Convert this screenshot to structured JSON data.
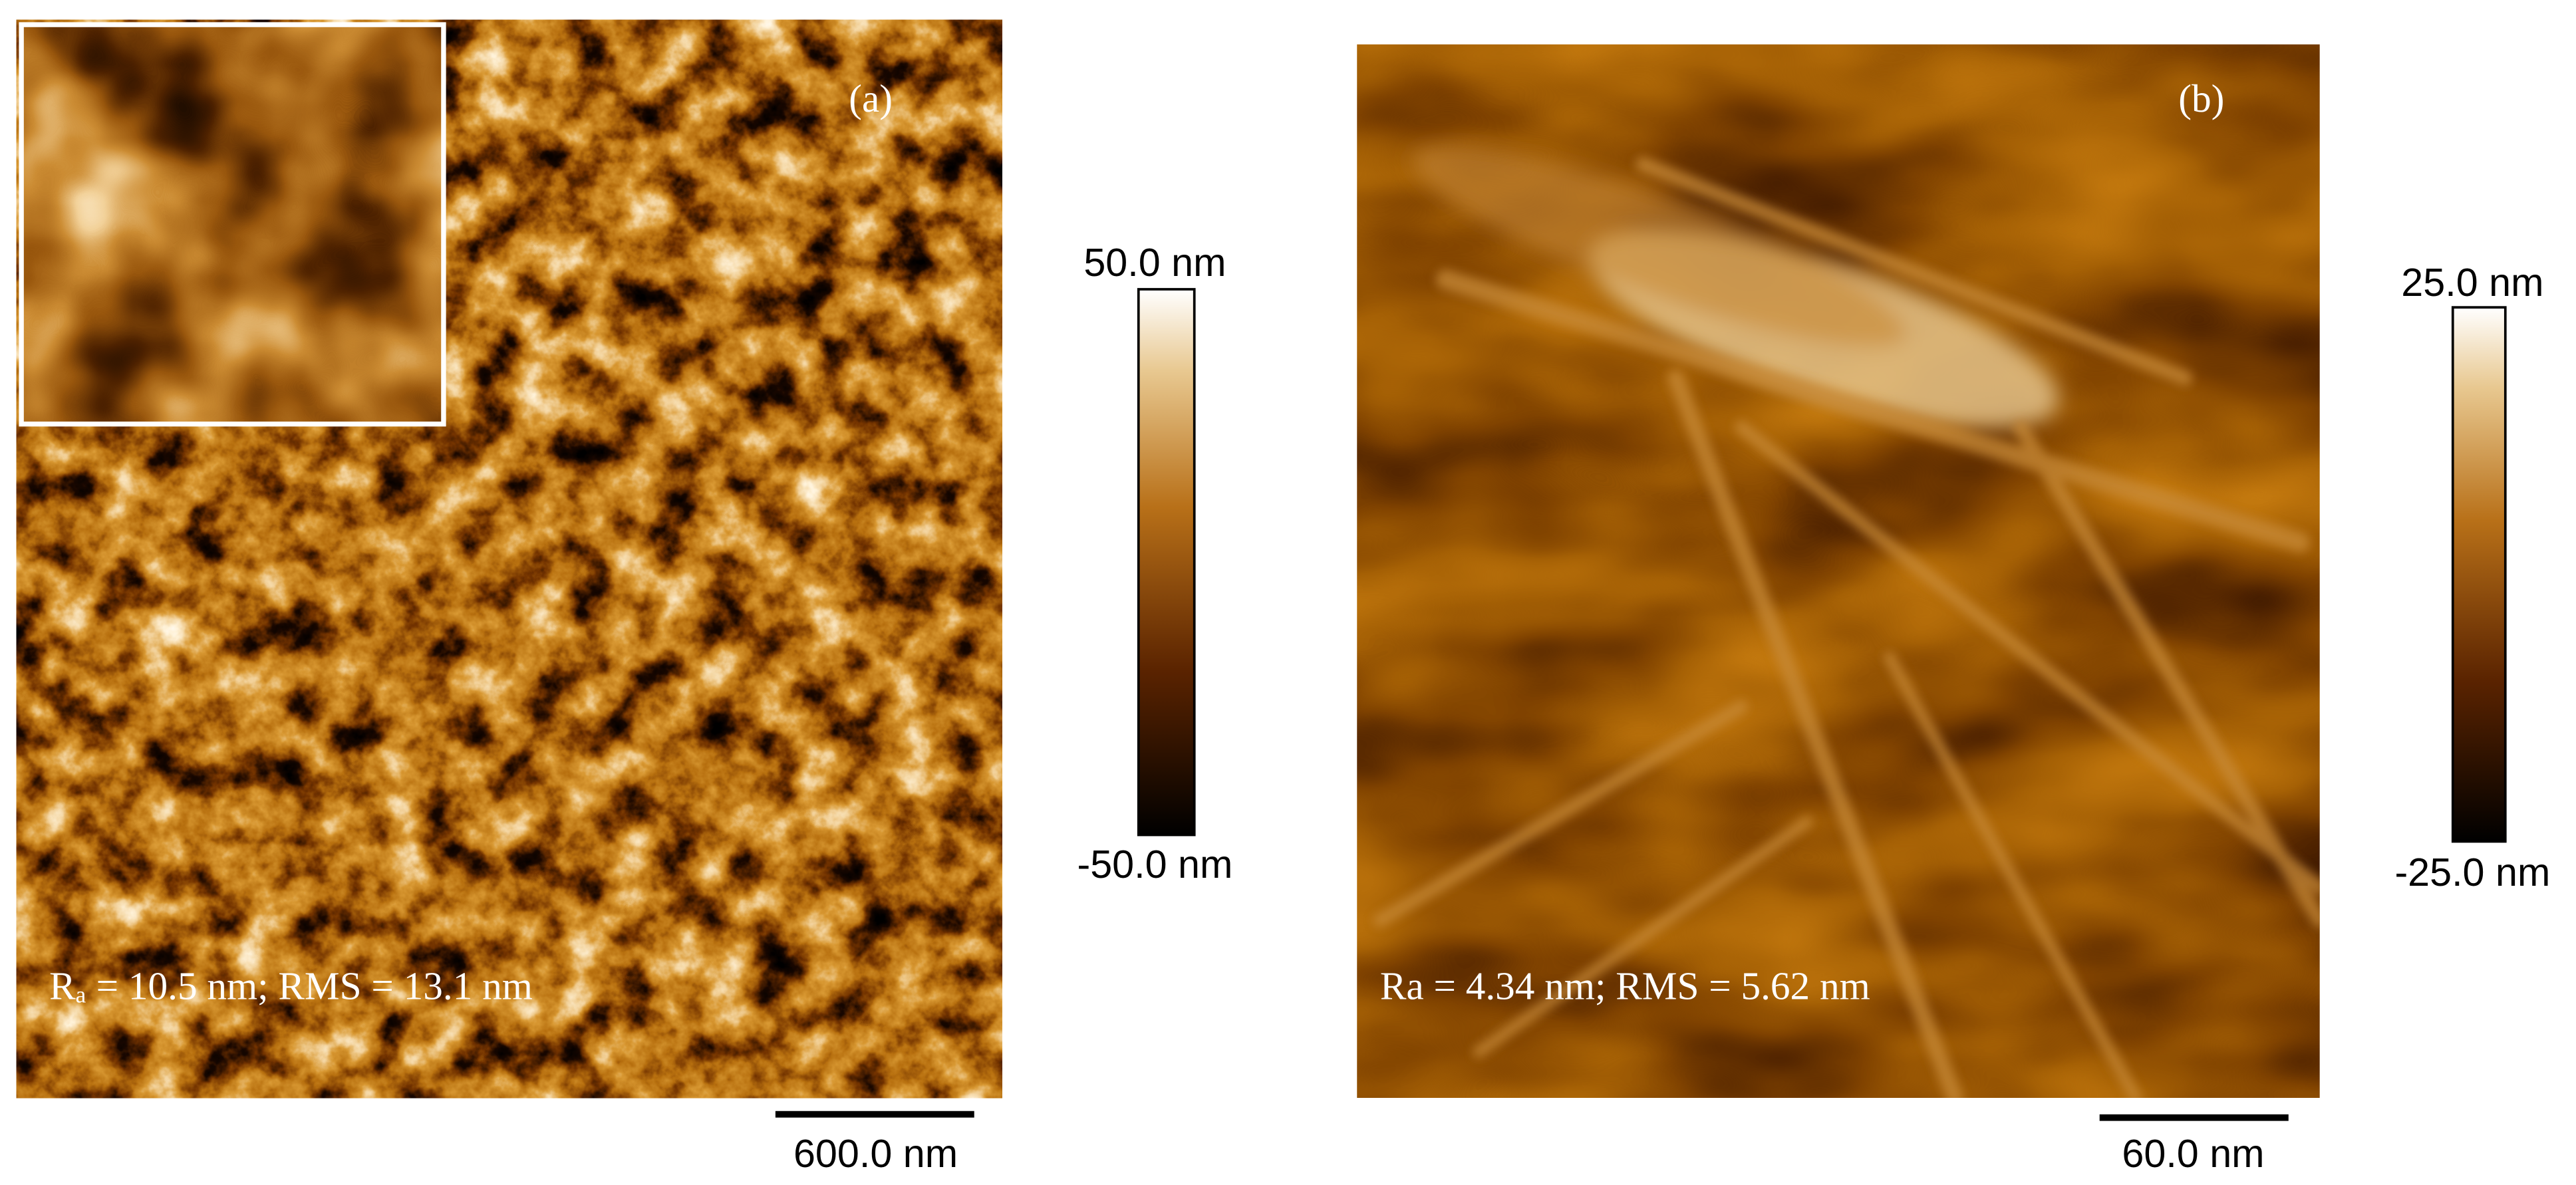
{
  "panels": [
    {
      "label": "(a)",
      "roughness": "Rₐ = 10.5 nm; RMS = 13.1 nm",
      "colorbar_max": "50.0 nm",
      "colorbar_min": "-50.0 nm",
      "scale_bar": "600.0 nm"
    },
    {
      "label": "(b)",
      "roughness": "Ra = 4.34 nm; RMS = 5.62 nm",
      "colorbar_max": "25.0 nm",
      "colorbar_min": "-25.0 nm",
      "scale_bar": "60.0 nm"
    }
  ]
}
